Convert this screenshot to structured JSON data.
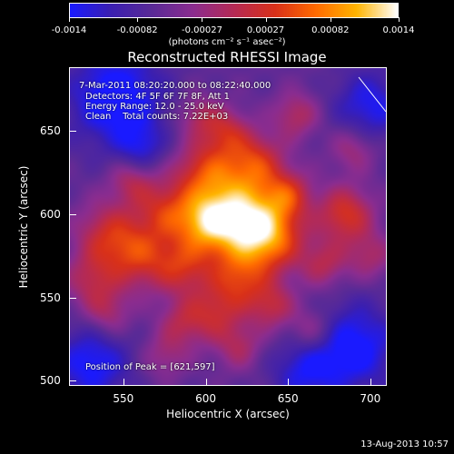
{
  "colorbar": {
    "ticks": [
      "-0.0014",
      "-0.00082",
      "-0.00027",
      "0.00027",
      "0.00082",
      "0.0014"
    ],
    "tick_values": [
      -0.0014,
      -0.00082,
      -0.00027,
      0.00027,
      0.00082,
      0.0014
    ],
    "range": [
      -0.0014,
      0.0014
    ],
    "unit": "(photons cm⁻² s⁻¹ asec⁻²)"
  },
  "chart_data": {
    "type": "heatmap",
    "title": "Reconstructed RHESSI Image",
    "xlabel": "Heliocentric X (arcsec)",
    "ylabel": "Heliocentric Y (arcsec)",
    "xlim": [
      517,
      710
    ],
    "ylim": [
      497,
      688
    ],
    "xticks": [
      "550",
      "600",
      "650",
      "700"
    ],
    "xtick_values": [
      550,
      600,
      650,
      700
    ],
    "yticks": [
      "500",
      "550",
      "600",
      "650"
    ],
    "ytick_values": [
      500,
      550,
      600,
      650
    ],
    "peak_position": [
      621,
      597
    ],
    "annotations": {
      "time": "7-Mar-2011 08:20:20.000 to 08:22:40.000",
      "detectors": "Detectors: 4F 5F 6F 7F 8F, Att 1",
      "energy": "Energy Range: 12.0 - 25.0 keV",
      "clean": "Clean    Total counts: 7.22E+03",
      "peak": "Position of Peak = [621,597]"
    },
    "colormap": [
      "#1a1aff",
      "#3b1fb0",
      "#5a2a96",
      "#8b2c8f",
      "#b52a55",
      "#d8301a",
      "#ff6a00",
      "#ffb400",
      "#ffffff"
    ]
  },
  "footer": "13-Aug-2013 10:57"
}
